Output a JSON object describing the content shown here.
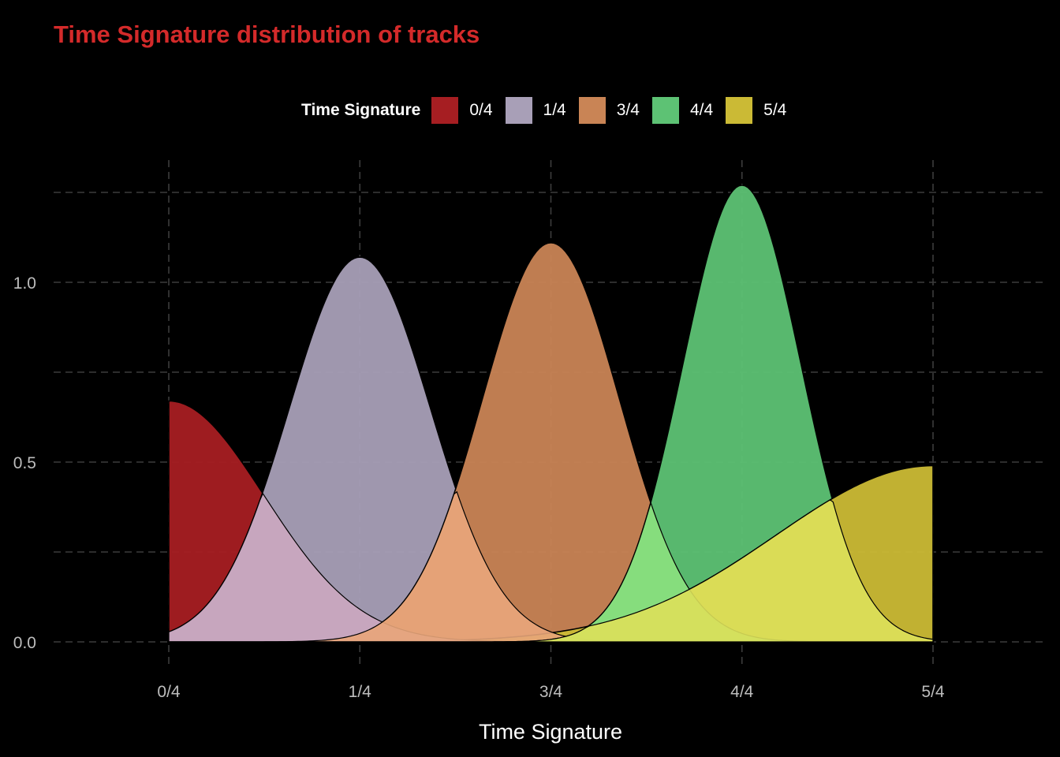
{
  "chart_data": {
    "type": "area",
    "subtype": "density",
    "title": "Time Signature distribution of tracks",
    "xlabel": "Time Signature",
    "ylabel": "",
    "legend": {
      "title": "Time Signature",
      "position": "top",
      "entries": [
        "0/4",
        "1/4",
        "3/4",
        "4/4",
        "5/4"
      ]
    },
    "x_categories": [
      "0/4",
      "1/4",
      "3/4",
      "4/4",
      "5/4"
    ],
    "x_range": [
      0,
      4
    ],
    "y_range": [
      0,
      1.3
    ],
    "y_ticks": [
      0.0,
      0.5,
      1.0
    ],
    "y_tick_labels": [
      "0.0",
      "0.5",
      "1.0"
    ],
    "grid": true,
    "series": [
      {
        "name": "0/4",
        "color": "#a61e22",
        "peak_x": 0,
        "peak_y": 0.67,
        "sigma": 0.5,
        "mass_ratio": 0.46
      },
      {
        "name": "1/4",
        "color": "#a89fb7",
        "peak_x": 1,
        "peak_y": 1.07,
        "sigma": 0.37
      },
      {
        "name": "3/4",
        "color": "#c98455",
        "peak_x": 2,
        "peak_y": 1.11,
        "sigma": 0.36
      },
      {
        "name": "4/4",
        "color": "#5dc274",
        "peak_x": 3,
        "peak_y": 1.27,
        "sigma": 0.31
      },
      {
        "name": "5/4",
        "color": "#cbba35",
        "peak_x": 4,
        "peak_y": 0.49,
        "sigma": 0.82,
        "mass_ratio": 0.5
      }
    ]
  }
}
